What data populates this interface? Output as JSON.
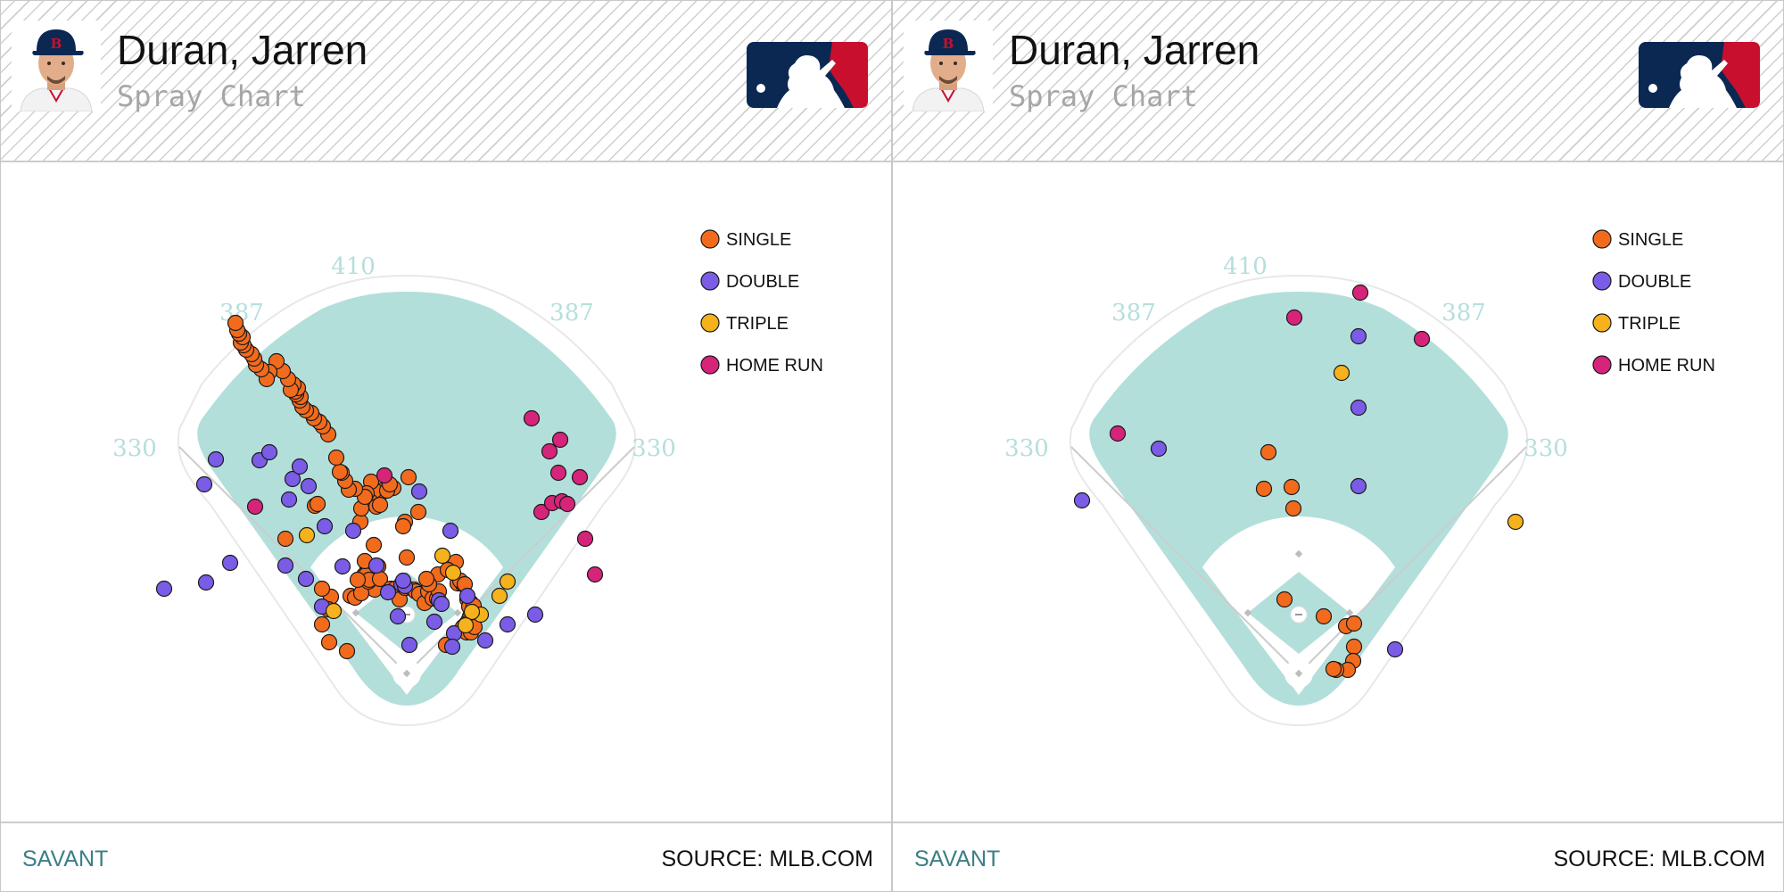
{
  "panels": [
    {
      "player_name": "Duran, Jarren",
      "subtitle": "Spray Chart",
      "footer": {
        "brand": "SAVANT",
        "source": "SOURCE: MLB.COM"
      }
    },
    {
      "player_name": "Duran, Jarren",
      "subtitle": "Spray Chart",
      "footer": {
        "brand": "SAVANT",
        "source": "SOURCE: MLB.COM"
      }
    }
  ],
  "colors": {
    "outfield_grass": "#b3dfdb",
    "infield_dirt": "#ffffff",
    "single": "#f26b1d",
    "double": "#7b5ce6",
    "triple": "#f5b21c",
    "home_run": "#d6247a",
    "brand_text": "#3a7f86",
    "logo_navy": "#0b2852",
    "logo_red": "#c8102e"
  },
  "chart_data": [
    {
      "type": "scatter",
      "distance_labels": [
        "330",
        "387",
        "410",
        "387",
        "330"
      ],
      "legend": [
        {
          "key": "single",
          "label": "SINGLE"
        },
        {
          "key": "double",
          "label": "DOUBLE"
        },
        {
          "key": "triple",
          "label": "TRIPLE"
        },
        {
          "key": "home_run",
          "label": "HOME RUN"
        }
      ],
      "series": [
        {
          "key": "single",
          "points": [
            [
              -136,
              -151
            ],
            [
              -85,
              -86
            ],
            [
              -95,
              -55
            ],
            [
              -95,
              -95
            ],
            [
              -88,
              -72
            ],
            [
              -87,
              -35
            ],
            [
              -67,
              -25
            ],
            [
              -63,
              -87
            ],
            [
              -58,
              -85
            ],
            [
              -36,
              -94
            ],
            [
              -32,
              -120
            ],
            [
              -51,
              -90
            ],
            [
              -52,
              -170
            ],
            [
              -44,
              -119
            ],
            [
              -41,
              -114
            ],
            [
              -37,
              -144
            ],
            [
              -48,
              -110
            ],
            [
              -46,
              -110
            ],
            [
              -47,
              -126
            ],
            [
              -43,
              -103
            ],
            [
              -42,
              -105
            ],
            [
              -55,
              -105
            ],
            [
              -30,
              -106
            ],
            [
              -18,
              -95
            ],
            [
              -13,
              -95
            ],
            [
              -8,
              -83
            ],
            [
              -1,
              -96
            ],
            [
              -2,
              -96
            ],
            [
              8,
              -94
            ],
            [
              10,
              -92
            ],
            [
              14,
              -89
            ],
            [
              20,
              -79
            ],
            [
              24,
              -92
            ],
            [
              29,
              -84
            ],
            [
              34,
              -84
            ],
            [
              36,
              -92
            ],
            [
              35,
              -111
            ],
            [
              57,
              -101
            ],
            [
              68,
              -83
            ],
            [
              72,
              -79
            ],
            [
              71,
              -80
            ],
            [
              70,
              -75
            ],
            [
              74,
              -71
            ],
            [
              75,
              -76
            ],
            [
              71,
              -64
            ],
            [
              67,
              -47
            ],
            [
              70,
              -61
            ],
            [
              63,
              -52
            ],
            [
              67,
              -46
            ],
            [
              67,
              -56
            ],
            [
              72,
              -46
            ],
            [
              76,
              -52
            ],
            [
              44,
              -32
            ],
            [
              0,
              -130
            ],
            [
              55,
              -125
            ],
            [
              46,
              -116
            ],
            [
              63,
              -100
            ],
            [
              60,
              -104
            ],
            [
              65,
              -100
            ],
            [
              25,
              -100
            ],
            [
              22,
              -106
            ],
            [
              -2,
              -170
            ],
            [
              -4,
              -165
            ],
            [
              13,
              -181
            ],
            [
              2,
              -220
            ],
            [
              -15,
              -208
            ],
            [
              -29,
              -202
            ],
            [
              -27,
              -205
            ],
            [
              -38,
              -194
            ],
            [
              -36,
              -205
            ],
            [
              -41,
              -193
            ],
            [
              -51,
              -185
            ],
            [
              -34,
              -187
            ],
            [
              -30,
              -189
            ],
            [
              -22,
              -205
            ],
            [
              -19,
              -212
            ],
            [
              -40,
              -215
            ],
            [
              -45,
              -202
            ],
            [
              -47,
              -198
            ],
            [
              -58,
              -207
            ],
            [
              -65,
              -206
            ],
            [
              -103,
              -188
            ],
            [
              -100,
              -190
            ],
            [
              -69,
              -216
            ],
            [
              -73,
              -225
            ],
            [
              -75,
              -226
            ],
            [
              -79,
              -242
            ],
            [
              -88,
              -268
            ],
            [
              -94,
              -277
            ],
            [
              -98,
              -282
            ],
            [
              -104,
              -286
            ],
            [
              -107,
              -292
            ],
            [
              -113,
              -295
            ],
            [
              -117,
              -299
            ],
            [
              -120,
              -306
            ],
            [
              -119,
              -310
            ],
            [
              -124,
              -313
            ],
            [
              -125,
              -316
            ],
            [
              -122,
              -320
            ],
            [
              -127,
              -324
            ],
            [
              -130,
              -318
            ],
            [
              -133,
              -330
            ],
            [
              -139,
              -339
            ],
            [
              -146,
              -350
            ],
            [
              -154,
              -338
            ],
            [
              -157,
              -330
            ],
            [
              -163,
              -341
            ],
            [
              -169,
              -346
            ],
            [
              -171,
              -353
            ],
            [
              -174,
              -358
            ],
            [
              -180,
              -363
            ],
            [
              -183,
              -368
            ],
            [
              -186,
              -371
            ],
            [
              -184,
              -377
            ],
            [
              -188,
              -381
            ],
            [
              -190,
              -385
            ],
            [
              -192,
              -393
            ]
          ]
        },
        {
          "key": "double",
          "points": [
            [
              -272,
              -95
            ],
            [
              -225,
              -102
            ],
            [
              -198,
              -124
            ],
            [
              -136,
              -121
            ],
            [
              -113,
              -106
            ],
            [
              -165,
              -239
            ],
            [
              -214,
              -240
            ],
            [
              -227,
              -212
            ],
            [
              -128,
              -218
            ],
            [
              -95,
              -75
            ],
            [
              -34,
              -121
            ],
            [
              -21,
              -91
            ],
            [
              -10,
              -64
            ],
            [
              -6,
              -100
            ],
            [
              -2,
              -98
            ],
            [
              -4,
              -104
            ],
            [
              31,
              -58
            ],
            [
              53,
              -45
            ],
            [
              36,
              -82
            ],
            [
              39,
              -78
            ],
            [
              68,
              -87
            ],
            [
              88,
              -37
            ],
            [
              113,
              -55
            ],
            [
              144,
              -66
            ],
            [
              49,
              -160
            ],
            [
              14,
              -204
            ],
            [
              -72,
              -120
            ],
            [
              51,
              -30
            ],
            [
              3,
              -32
            ],
            [
              -154,
              -248
            ],
            [
              -132,
              -195
            ],
            [
              -120,
              -232
            ],
            [
              -110,
              -210
            ],
            [
              -92,
              -165
            ],
            [
              -60,
              -160
            ]
          ]
        },
        {
          "key": "triple",
          "points": [
            [
              -112,
              -155
            ],
            [
              -82,
              -70
            ],
            [
              40,
              -132
            ],
            [
              52,
              -113
            ],
            [
              113,
              -103
            ],
            [
              104,
              -87
            ],
            [
              83,
              -66
            ],
            [
              73,
              -69
            ],
            [
              66,
              -54
            ]
          ]
        },
        {
          "key": "home_run",
          "points": [
            [
              -170,
              -187
            ],
            [
              -25,
              -222
            ],
            [
              140,
              -286
            ],
            [
              170,
              -225
            ],
            [
              200,
              -151
            ],
            [
              151,
              -181
            ],
            [
              163,
              -191
            ],
            [
              174,
              -193
            ],
            [
              211,
              -111
            ],
            [
              180,
              -190
            ],
            [
              160,
              -249
            ],
            [
              172,
              -262
            ],
            [
              194,
              -220
            ]
          ]
        }
      ]
    },
    {
      "type": "scatter",
      "distance_labels": [
        "330",
        "387",
        "410",
        "387",
        "330"
      ],
      "legend": [
        {
          "key": "single",
          "label": "SINGLE"
        },
        {
          "key": "double",
          "label": "DOUBLE"
        },
        {
          "key": "triple",
          "label": "TRIPLE"
        },
        {
          "key": "home_run",
          "label": "HOME RUN"
        }
      ],
      "series": [
        {
          "key": "single",
          "points": [
            [
              -34,
              -248
            ],
            [
              -39,
              -207
            ],
            [
              -8,
              -209
            ],
            [
              -6,
              -185
            ],
            [
              -16,
              -83
            ],
            [
              28,
              -64
            ],
            [
              53,
              -53
            ],
            [
              62,
              -30
            ],
            [
              61,
              -14
            ],
            [
              55,
              -4
            ],
            [
              42,
              -4
            ],
            [
              39,
              -5
            ],
            [
              62,
              -56
            ]
          ]
        },
        {
          "key": "double",
          "points": [
            [
              -243,
              -194
            ],
            [
              -157,
              -252
            ],
            [
              67,
              -210
            ],
            [
              67,
              -298
            ],
            [
              67,
              -378
            ],
            [
              108,
              -27
            ]
          ]
        },
        {
          "key": "triple",
          "points": [
            [
              48,
              -337
            ],
            [
              243,
              -170
            ]
          ]
        },
        {
          "key": "home_run",
          "points": [
            [
              -203,
              -269
            ],
            [
              -5,
              -399
            ],
            [
              69,
              -427
            ],
            [
              138,
              -375
            ]
          ]
        }
      ]
    }
  ]
}
